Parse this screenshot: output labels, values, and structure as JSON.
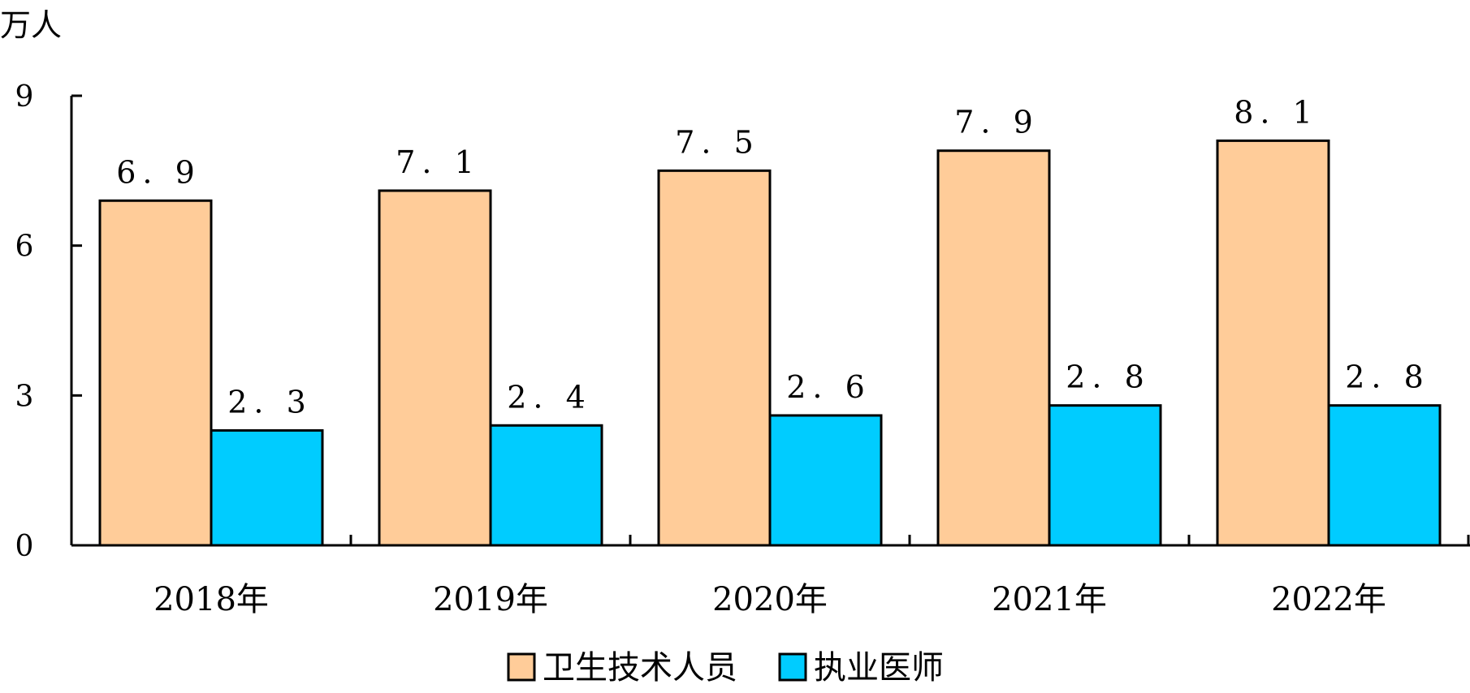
{
  "chart_data": {
    "type": "bar",
    "unit_label": "万人",
    "categories": [
      "2018年",
      "2019年",
      "2020年",
      "2021年",
      "2022年"
    ],
    "series": [
      {
        "name": "卫生技术人员",
        "color": "#FFCC99",
        "values": [
          6.9,
          7.1,
          7.5,
          7.9,
          8.1
        ],
        "labels": [
          "6. 9",
          "7. 1",
          "7. 5",
          "7. 9",
          "8. 1"
        ]
      },
      {
        "name": "执业医师",
        "color": "#00CCFF",
        "values": [
          2.3,
          2.4,
          2.6,
          2.8,
          2.8
        ],
        "labels": [
          "2. 3",
          "2. 4",
          "2. 6",
          "2. 8",
          "2. 8"
        ]
      }
    ],
    "yticks": [
      0,
      3,
      6,
      9
    ],
    "ylim": [
      0,
      9
    ],
    "grid": false,
    "legend": "bottom-center"
  }
}
